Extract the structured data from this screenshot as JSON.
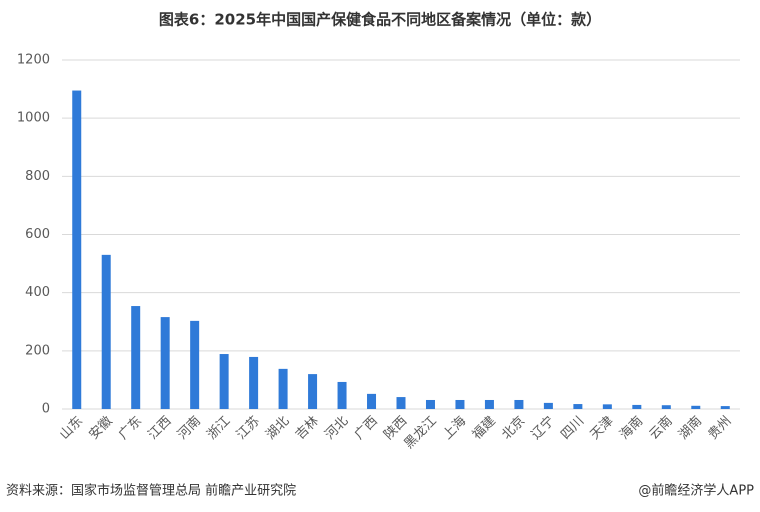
{
  "chart_data": {
    "type": "bar",
    "title": "图表6：2025年中国国产保健食品不同地区备案情况（单位：款）",
    "categories": [
      "山东",
      "安徽",
      "广东",
      "江西",
      "河南",
      "浙江",
      "江苏",
      "湖北",
      "吉林",
      "河北",
      "广西",
      "陕西",
      "黑龙江",
      "上海",
      "福建",
      "北京",
      "辽宁",
      "四川",
      "天津",
      "海南",
      "云南",
      "湖南",
      "贵州"
    ],
    "values": [
      1095,
      530,
      354,
      316,
      303,
      189,
      179,
      138,
      120,
      93,
      52,
      41,
      31,
      31,
      31,
      31,
      21,
      17,
      16,
      14,
      13,
      11,
      10
    ],
    "color": "#2f7ad8",
    "ylim": [
      0,
      1200
    ],
    "yticks": [
      0,
      200,
      400,
      600,
      800,
      1000,
      1200
    ],
    "grid": true,
    "source": "资料来源：国家市场监督管理总局 前瞻产业研究院",
    "credit": "@前瞻经济学人APP"
  }
}
